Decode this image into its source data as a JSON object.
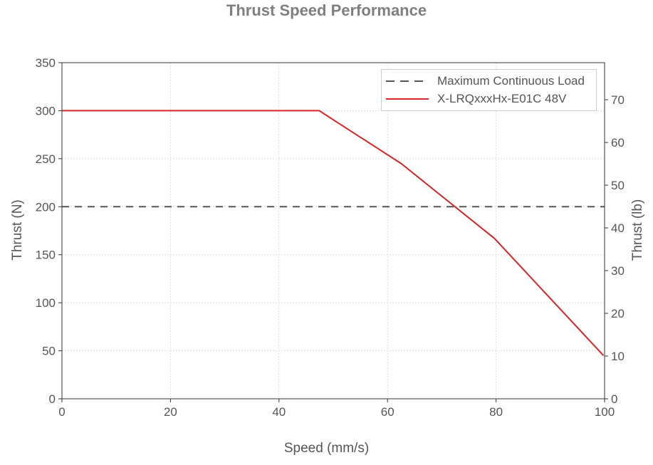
{
  "chart_data": {
    "type": "line",
    "title": "Thrust Speed Performance",
    "xlabel": "Speed (mm/s)",
    "ylabel": "Thrust (N)",
    "ylabel_right": "Thrust (lb)",
    "xlim": [
      0,
      100
    ],
    "ylim": [
      0,
      350
    ],
    "ylim_right": [
      0,
      78.68
    ],
    "x_ticks": [
      0,
      20,
      40,
      60,
      80,
      100
    ],
    "y_ticks": [
      0,
      50,
      100,
      150,
      200,
      250,
      300,
      350
    ],
    "y_ticks_right": [
      0,
      10,
      20,
      30,
      40,
      50,
      60,
      70
    ],
    "grid": true,
    "legend_position": "top-right",
    "series": [
      {
        "name": "Maximum Continuous Load",
        "style": "dashed",
        "color": "#555555",
        "x": [
          0,
          100
        ],
        "y": [
          200,
          200
        ]
      },
      {
        "name": "X-LRQxxxHx-E01C 48V",
        "style": "solid",
        "color": "#d62728",
        "x": [
          0,
          47.4,
          62.5,
          79.7,
          99.8
        ],
        "y": [
          300,
          300,
          245,
          167,
          45
        ]
      }
    ]
  }
}
